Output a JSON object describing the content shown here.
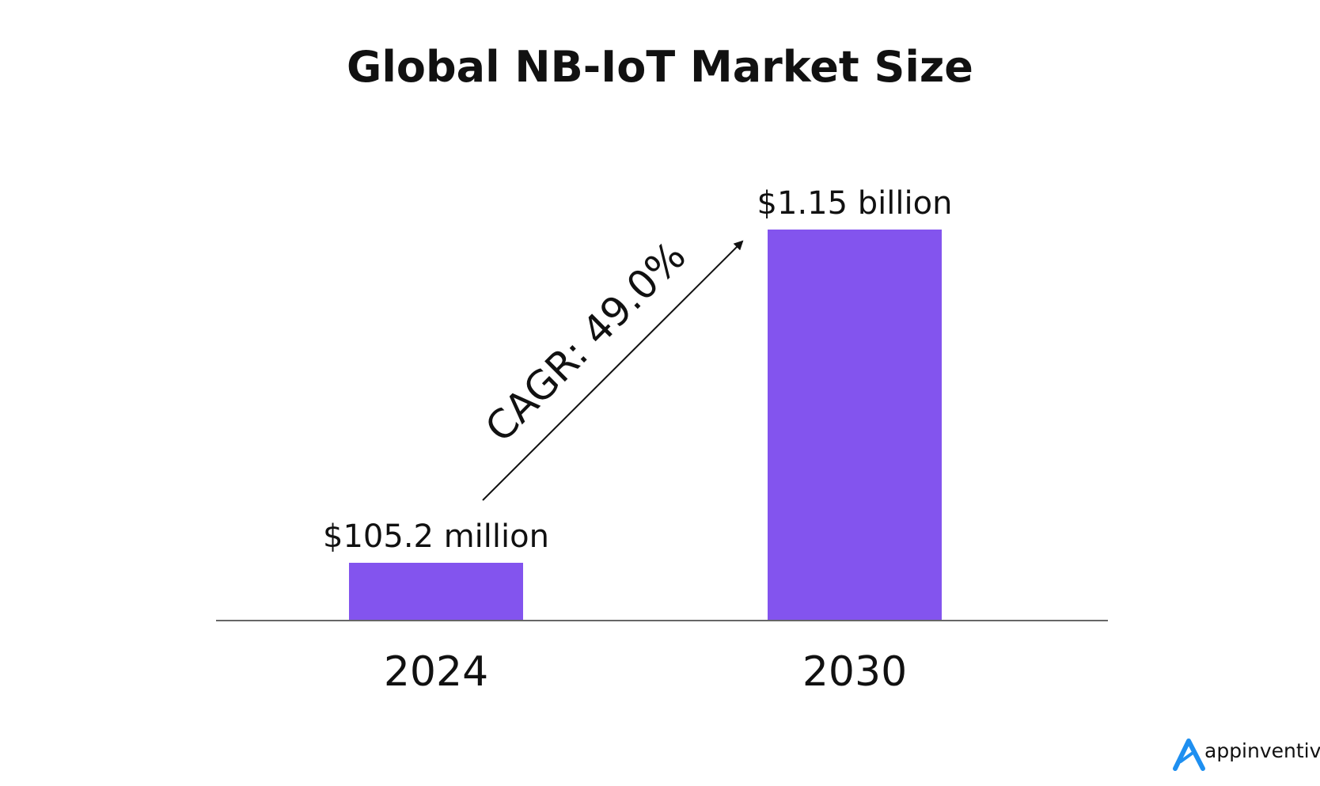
{
  "chart_data": {
    "type": "bar",
    "title": "Global NB-IoT Market Size",
    "categories": [
      "2024",
      "2030"
    ],
    "values": [
      105.2,
      1150
    ],
    "unit": "million USD",
    "value_labels": [
      "$105.2 million",
      "$1.15 billion"
    ],
    "ylim": [
      0,
      1150
    ],
    "grid": false,
    "bar_color": "#8354ee",
    "annotation": "CAGR: 49.0%"
  },
  "brand": {
    "name": "appinventiv",
    "icon": "appinventiv-logo-icon",
    "icon_color": "#1e8ff0"
  }
}
